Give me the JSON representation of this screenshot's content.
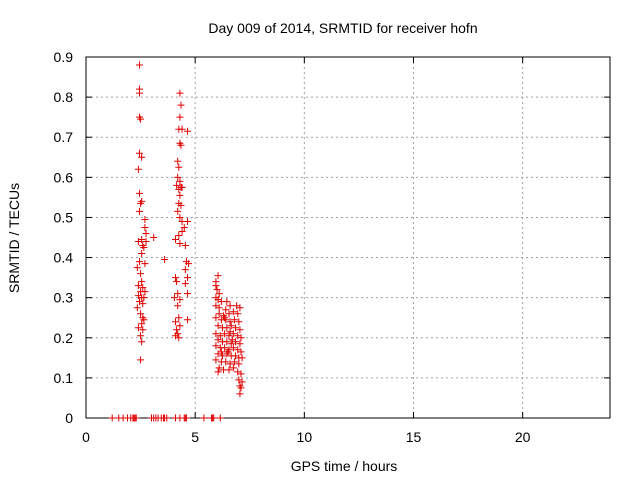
{
  "chart_data": {
    "type": "scatter",
    "title": "Day 009 of 2014, SRMTID for receiver hofn",
    "xlabel": "GPS time / hours",
    "ylabel": "SRMTID / TECUs",
    "xlim": [
      0,
      24
    ],
    "ylim": [
      0,
      0.9
    ],
    "xticks": [
      "0",
      "5",
      "10",
      "15",
      "20"
    ],
    "yticks": [
      "0",
      "0.1",
      "0.2",
      "0.3",
      "0.4",
      "0.5",
      "0.6",
      "0.7",
      "0.8",
      "0.9"
    ],
    "marker": "plus",
    "color": "#e00000",
    "grid": true,
    "series": [
      {
        "name": "SRMTID",
        "points": [
          [
            2.45,
            0.88
          ],
          [
            2.45,
            0.82
          ],
          [
            2.45,
            0.81
          ],
          [
            2.45,
            0.75
          ],
          [
            2.5,
            0.745
          ],
          [
            2.45,
            0.66
          ],
          [
            2.55,
            0.65
          ],
          [
            2.4,
            0.62
          ],
          [
            2.45,
            0.56
          ],
          [
            2.55,
            0.54
          ],
          [
            2.5,
            0.535
          ],
          [
            2.45,
            0.515
          ],
          [
            2.7,
            0.495
          ],
          [
            2.7,
            0.475
          ],
          [
            2.75,
            0.46
          ],
          [
            2.55,
            0.445
          ],
          [
            2.4,
            0.44
          ],
          [
            2.6,
            0.43
          ],
          [
            2.75,
            0.44
          ],
          [
            2.65,
            0.425
          ],
          [
            2.55,
            0.41
          ],
          [
            2.45,
            0.39
          ],
          [
            2.7,
            0.385
          ],
          [
            2.35,
            0.375
          ],
          [
            2.5,
            0.36
          ],
          [
            2.55,
            0.34
          ],
          [
            2.4,
            0.33
          ],
          [
            2.6,
            0.325
          ],
          [
            2.5,
            0.315
          ],
          [
            2.7,
            0.315
          ],
          [
            2.4,
            0.305
          ],
          [
            2.55,
            0.3
          ],
          [
            2.65,
            0.3
          ],
          [
            2.45,
            0.29
          ],
          [
            2.6,
            0.285
          ],
          [
            2.35,
            0.275
          ],
          [
            2.5,
            0.26
          ],
          [
            2.6,
            0.25
          ],
          [
            2.65,
            0.245
          ],
          [
            2.55,
            0.235
          ],
          [
            2.4,
            0.225
          ],
          [
            2.6,
            0.22
          ],
          [
            2.5,
            0.205
          ],
          [
            2.55,
            0.19
          ],
          [
            2.5,
            0.145
          ],
          [
            3.1,
            0.45
          ],
          [
            3.6,
            0.395
          ],
          [
            4.3,
            0.81
          ],
          [
            4.35,
            0.78
          ],
          [
            4.3,
            0.75
          ],
          [
            4.25,
            0.72
          ],
          [
            4.4,
            0.72
          ],
          [
            4.65,
            0.715
          ],
          [
            4.3,
            0.685
          ],
          [
            4.35,
            0.68
          ],
          [
            4.2,
            0.64
          ],
          [
            4.25,
            0.625
          ],
          [
            4.2,
            0.6
          ],
          [
            4.3,
            0.59
          ],
          [
            4.15,
            0.58
          ],
          [
            4.35,
            0.575
          ],
          [
            4.25,
            0.57
          ],
          [
            4.4,
            0.575
          ],
          [
            4.3,
            0.555
          ],
          [
            4.25,
            0.535
          ],
          [
            4.35,
            0.53
          ],
          [
            4.2,
            0.515
          ],
          [
            4.3,
            0.5
          ],
          [
            4.4,
            0.49
          ],
          [
            4.65,
            0.49
          ],
          [
            4.5,
            0.475
          ],
          [
            4.4,
            0.465
          ],
          [
            4.25,
            0.455
          ],
          [
            4.1,
            0.445
          ],
          [
            4.3,
            0.435
          ],
          [
            4.55,
            0.43
          ],
          [
            4.6,
            0.39
          ],
          [
            4.7,
            0.385
          ],
          [
            4.55,
            0.37
          ],
          [
            4.65,
            0.35
          ],
          [
            4.55,
            0.335
          ],
          [
            4.1,
            0.35
          ],
          [
            4.15,
            0.34
          ],
          [
            4.2,
            0.31
          ],
          [
            4.05,
            0.3
          ],
          [
            4.3,
            0.295
          ],
          [
            4.2,
            0.28
          ],
          [
            4.65,
            0.31
          ],
          [
            4.25,
            0.25
          ],
          [
            4.1,
            0.24
          ],
          [
            4.3,
            0.23
          ],
          [
            4.15,
            0.22
          ],
          [
            4.2,
            0.21
          ],
          [
            4.1,
            0.205
          ],
          [
            4.25,
            0.2
          ],
          [
            4.65,
            0.245
          ],
          [
            6.05,
            0.355
          ],
          [
            5.95,
            0.34
          ],
          [
            5.95,
            0.33
          ],
          [
            6.0,
            0.32
          ],
          [
            6.1,
            0.31
          ],
          [
            5.95,
            0.3
          ],
          [
            6.05,
            0.295
          ],
          [
            6.2,
            0.29
          ],
          [
            6.45,
            0.29
          ],
          [
            5.95,
            0.28
          ],
          [
            6.1,
            0.275
          ],
          [
            6.4,
            0.27
          ],
          [
            6.6,
            0.28
          ],
          [
            6.9,
            0.28
          ],
          [
            7.05,
            0.275
          ],
          [
            6.1,
            0.26
          ],
          [
            6.3,
            0.255
          ],
          [
            6.55,
            0.26
          ],
          [
            6.75,
            0.265
          ],
          [
            6.95,
            0.26
          ],
          [
            5.95,
            0.25
          ],
          [
            6.2,
            0.245
          ],
          [
            6.4,
            0.245
          ],
          [
            6.6,
            0.24
          ],
          [
            6.8,
            0.245
          ],
          [
            7.0,
            0.24
          ],
          [
            6.05,
            0.23
          ],
          [
            6.25,
            0.225
          ],
          [
            6.45,
            0.225
          ],
          [
            6.65,
            0.23
          ],
          [
            6.85,
            0.225
          ],
          [
            7.05,
            0.22
          ],
          [
            5.95,
            0.21
          ],
          [
            6.15,
            0.205
          ],
          [
            6.35,
            0.21
          ],
          [
            6.55,
            0.205
          ],
          [
            6.75,
            0.21
          ],
          [
            6.95,
            0.205
          ],
          [
            7.1,
            0.2
          ],
          [
            6.05,
            0.195
          ],
          [
            6.25,
            0.19
          ],
          [
            6.45,
            0.19
          ],
          [
            6.65,
            0.185
          ],
          [
            6.85,
            0.19
          ],
          [
            7.05,
            0.185
          ],
          [
            5.95,
            0.18
          ],
          [
            6.15,
            0.175
          ],
          [
            6.35,
            0.175
          ],
          [
            6.55,
            0.17
          ],
          [
            6.75,
            0.175
          ],
          [
            6.95,
            0.17
          ],
          [
            7.1,
            0.165
          ],
          [
            6.05,
            0.16
          ],
          [
            6.25,
            0.155
          ],
          [
            6.45,
            0.16
          ],
          [
            6.65,
            0.155
          ],
          [
            6.85,
            0.155
          ],
          [
            7.0,
            0.15
          ],
          [
            7.15,
            0.15
          ],
          [
            5.95,
            0.145
          ],
          [
            6.2,
            0.14
          ],
          [
            6.4,
            0.14
          ],
          [
            6.6,
            0.135
          ],
          [
            6.8,
            0.14
          ],
          [
            7.0,
            0.135
          ],
          [
            6.1,
            0.125
          ],
          [
            6.3,
            0.12
          ],
          [
            6.55,
            0.12
          ],
          [
            6.75,
            0.125
          ],
          [
            6.95,
            0.115
          ],
          [
            7.1,
            0.11
          ],
          [
            6.05,
            0.115
          ],
          [
            7.0,
            0.095
          ],
          [
            7.15,
            0.09
          ],
          [
            7.05,
            0.08
          ],
          [
            7.1,
            0.075
          ],
          [
            7.05,
            0.06
          ],
          [
            6.35,
            0.25
          ],
          [
            6.6,
            0.215
          ],
          [
            6.7,
            0.195
          ],
          [
            6.5,
            0.165
          ],
          [
            6.2,
            0.165
          ],
          [
            1.2,
            0
          ],
          [
            1.5,
            0
          ],
          [
            1.7,
            0
          ],
          [
            1.9,
            0
          ],
          [
            2.05,
            0
          ],
          [
            2.15,
            0
          ],
          [
            2.2,
            0
          ],
          [
            2.25,
            0
          ],
          [
            2.3,
            0
          ],
          [
            3.0,
            0
          ],
          [
            3.1,
            0
          ],
          [
            3.2,
            0
          ],
          [
            3.3,
            0
          ],
          [
            3.45,
            0
          ],
          [
            3.55,
            0
          ],
          [
            3.6,
            0
          ],
          [
            3.7,
            0
          ],
          [
            4.1,
            0
          ],
          [
            4.3,
            0
          ],
          [
            4.5,
            0
          ],
          [
            4.55,
            0
          ],
          [
            4.6,
            0
          ],
          [
            5.4,
            0
          ],
          [
            5.75,
            0
          ],
          [
            5.8,
            0
          ],
          [
            5.85,
            0
          ],
          [
            6.15,
            0
          ]
        ]
      }
    ]
  }
}
